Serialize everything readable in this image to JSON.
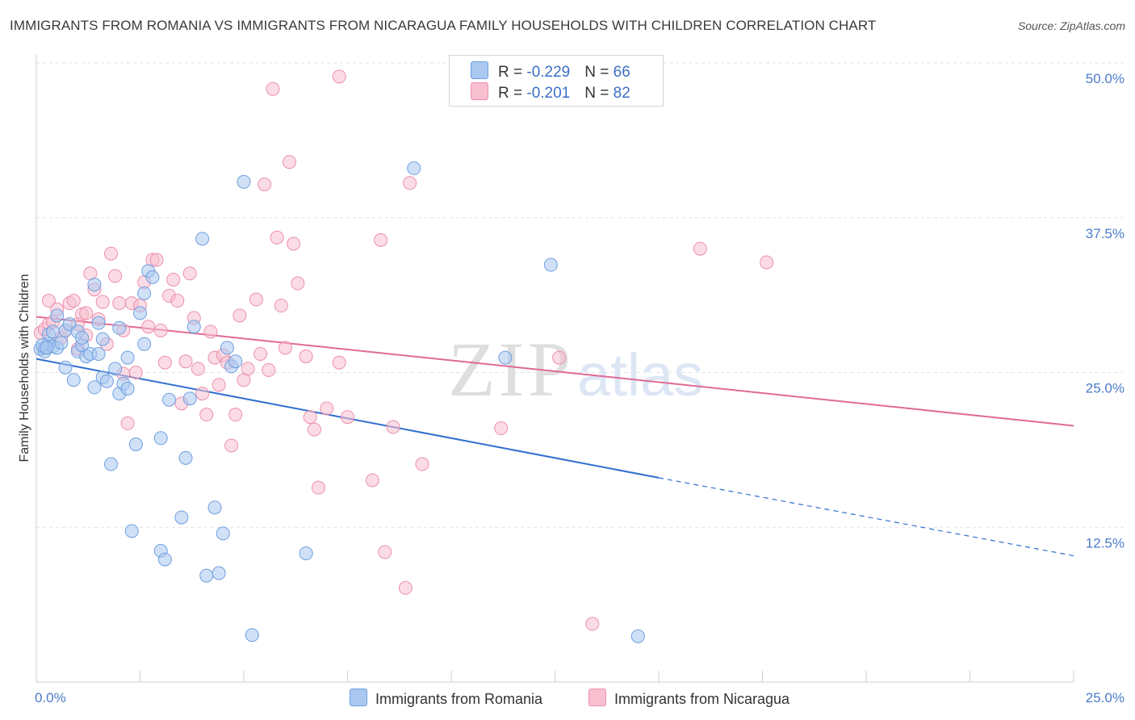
{
  "title": "IMMIGRANTS FROM ROMANIA VS IMMIGRANTS FROM NICARAGUA FAMILY HOUSEHOLDS WITH CHILDREN CORRELATION CHART",
  "source": "Source: ZipAtlas.com",
  "legend": {
    "romania": {
      "r_label": "R = ",
      "r_value": "-0.229",
      "n_label": "N = ",
      "n_value": "66"
    },
    "nicaragua": {
      "r_label": "R = ",
      "r_value": "-0.201",
      "n_label": "N = ",
      "n_value": "82"
    }
  },
  "bottom_legend": {
    "romania": "Immigrants from Romania",
    "nicaragua": "Immigrants from Nicaragua"
  },
  "colors": {
    "romania_fill": "#aac8f0",
    "romania_stroke": "#6f9fdf",
    "romania_line": "#2f6fd0",
    "nicaragua_fill": "#f7bfd0",
    "nicaragua_stroke": "#ec8fac",
    "nicaragua_line": "#e06a95",
    "tick_text": "#4a7cc9"
  },
  "chart_data": {
    "type": "scatter",
    "title": "IMMIGRANTS FROM ROMANIA VS IMMIGRANTS FROM NICARAGUA FAMILY HOUSEHOLDS WITH CHILDREN CORRELATION CHART",
    "xlabel": "",
    "ylabel": "Family Households with Children",
    "xlim": [
      0,
      25
    ],
    "ylim": [
      0,
      50
    ],
    "x_tick_labels": [
      "0.0%",
      "25.0%"
    ],
    "y_ticks": [
      12.5,
      25.0,
      37.5,
      50.0
    ],
    "y_tick_labels": [
      "12.5%",
      "25.0%",
      "37.5%",
      "50.0%"
    ],
    "watermark": {
      "zip": "ZIP",
      "atlas": "atlas"
    },
    "series": [
      {
        "name": "Immigrants from Romania",
        "r": -0.229,
        "n": 66,
        "trend": {
          "x0": 0,
          "y0": 26.1,
          "x1": 15,
          "y1": 16.5,
          "dash_to_x": 25,
          "dash_to_y": 10.2
        },
        "points": [
          [
            0.1,
            26.9
          ],
          [
            0.2,
            27.0
          ],
          [
            0.2,
            26.7
          ],
          [
            0.3,
            27.3
          ],
          [
            0.3,
            28.1
          ],
          [
            0.4,
            28.3
          ],
          [
            0.4,
            27.1
          ],
          [
            0.5,
            29.6
          ],
          [
            0.5,
            27.0
          ],
          [
            0.6,
            27.4
          ],
          [
            0.7,
            28.4
          ],
          [
            0.7,
            25.4
          ],
          [
            0.8,
            28.9
          ],
          [
            0.9,
            24.4
          ],
          [
            1.0,
            26.7
          ],
          [
            1.0,
            28.3
          ],
          [
            1.1,
            27.2
          ],
          [
            1.1,
            27.8
          ],
          [
            1.2,
            26.3
          ],
          [
            1.3,
            26.5
          ],
          [
            1.4,
            32.1
          ],
          [
            1.4,
            23.8
          ],
          [
            1.5,
            29.0
          ],
          [
            1.6,
            24.6
          ],
          [
            1.6,
            27.7
          ],
          [
            1.7,
            24.3
          ],
          [
            1.8,
            17.6
          ],
          [
            1.9,
            25.3
          ],
          [
            2.0,
            28.6
          ],
          [
            2.0,
            23.3
          ],
          [
            2.1,
            24.1
          ],
          [
            2.2,
            23.7
          ],
          [
            2.2,
            26.2
          ],
          [
            2.3,
            12.2
          ],
          [
            2.4,
            19.2
          ],
          [
            2.5,
            29.8
          ],
          [
            2.6,
            27.3
          ],
          [
            2.6,
            31.4
          ],
          [
            2.7,
            33.2
          ],
          [
            2.8,
            32.7
          ],
          [
            3.0,
            10.6
          ],
          [
            3.1,
            9.9
          ],
          [
            3.2,
            22.8
          ],
          [
            3.5,
            13.3
          ],
          [
            3.6,
            18.1
          ],
          [
            3.7,
            22.9
          ],
          [
            3.8,
            28.7
          ],
          [
            4.0,
            35.8
          ],
          [
            4.1,
            8.6
          ],
          [
            4.3,
            14.1
          ],
          [
            4.4,
            8.8
          ],
          [
            4.5,
            12.0
          ],
          [
            4.6,
            27.0
          ],
          [
            4.7,
            25.5
          ],
          [
            4.8,
            25.9
          ],
          [
            5.0,
            40.4
          ],
          [
            5.2,
            3.8
          ],
          [
            6.5,
            10.4
          ],
          [
            9.1,
            41.5
          ],
          [
            11.3,
            26.2
          ],
          [
            12.4,
            33.7
          ],
          [
            14.5,
            3.7
          ],
          [
            0.15,
            27.2
          ],
          [
            0.25,
            27.0
          ],
          [
            1.5,
            26.5
          ],
          [
            3.0,
            19.7
          ]
        ]
      },
      {
        "name": "Immigrants from Nicaragua",
        "r": -0.201,
        "n": 82,
        "trend": {
          "x0": 0,
          "y0": 29.5,
          "x1": 25,
          "y1": 20.7
        },
        "points": [
          [
            0.1,
            28.2
          ],
          [
            0.2,
            28.5
          ],
          [
            0.3,
            28.9
          ],
          [
            0.3,
            30.8
          ],
          [
            0.4,
            29.1
          ],
          [
            0.5,
            30.1
          ],
          [
            0.6,
            27.8
          ],
          [
            0.7,
            28.4
          ],
          [
            0.8,
            30.6
          ],
          [
            0.9,
            30.8
          ],
          [
            1.0,
            26.9
          ],
          [
            1.0,
            28.9
          ],
          [
            1.1,
            29.7
          ],
          [
            1.2,
            28.0
          ],
          [
            1.2,
            29.8
          ],
          [
            1.3,
            33.0
          ],
          [
            1.4,
            31.7
          ],
          [
            1.5,
            29.3
          ],
          [
            1.6,
            30.7
          ],
          [
            1.7,
            27.3
          ],
          [
            1.8,
            34.6
          ],
          [
            1.9,
            32.8
          ],
          [
            2.0,
            30.6
          ],
          [
            2.1,
            28.4
          ],
          [
            2.1,
            24.9
          ],
          [
            2.2,
            20.9
          ],
          [
            2.3,
            30.6
          ],
          [
            2.4,
            25.0
          ],
          [
            2.5,
            30.4
          ],
          [
            2.6,
            32.3
          ],
          [
            2.7,
            28.7
          ],
          [
            2.8,
            34.1
          ],
          [
            2.9,
            34.1
          ],
          [
            3.0,
            28.4
          ],
          [
            3.1,
            25.8
          ],
          [
            3.2,
            31.2
          ],
          [
            3.3,
            32.5
          ],
          [
            3.4,
            30.8
          ],
          [
            3.5,
            22.5
          ],
          [
            3.6,
            25.9
          ],
          [
            3.7,
            33.0
          ],
          [
            3.8,
            29.4
          ],
          [
            3.9,
            25.3
          ],
          [
            4.0,
            23.3
          ],
          [
            4.1,
            21.6
          ],
          [
            4.2,
            28.3
          ],
          [
            4.3,
            26.2
          ],
          [
            4.4,
            24.0
          ],
          [
            4.5,
            26.4
          ],
          [
            4.6,
            25.8
          ],
          [
            4.7,
            19.1
          ],
          [
            4.8,
            21.6
          ],
          [
            4.9,
            29.6
          ],
          [
            5.0,
            24.4
          ],
          [
            5.1,
            25.3
          ],
          [
            5.3,
            30.9
          ],
          [
            5.4,
            26.5
          ],
          [
            5.6,
            25.2
          ],
          [
            5.7,
            47.9
          ],
          [
            5.8,
            35.9
          ],
          [
            5.9,
            30.4
          ],
          [
            6.1,
            42.0
          ],
          [
            6.2,
            35.4
          ],
          [
            6.3,
            32.2
          ],
          [
            6.5,
            26.3
          ],
          [
            6.6,
            21.4
          ],
          [
            6.7,
            20.4
          ],
          [
            6.8,
            15.7
          ],
          [
            7.0,
            22.1
          ],
          [
            7.3,
            25.8
          ],
          [
            7.5,
            21.4
          ],
          [
            8.1,
            16.3
          ],
          [
            8.4,
            10.5
          ],
          [
            8.6,
            20.6
          ],
          [
            8.9,
            7.6
          ],
          [
            9.0,
            40.3
          ],
          [
            9.3,
            17.6
          ],
          [
            11.2,
            20.5
          ],
          [
            12.6,
            26.2
          ],
          [
            13.4,
            4.7
          ],
          [
            16.0,
            35.0
          ],
          [
            17.6,
            33.9
          ]
        ]
      }
    ],
    "extra_points_nicaragua": [
      [
        5.5,
        40.2
      ],
      [
        7.3,
        48.9
      ],
      [
        8.3,
        35.7
      ],
      [
        6.0,
        27.0
      ]
    ]
  }
}
